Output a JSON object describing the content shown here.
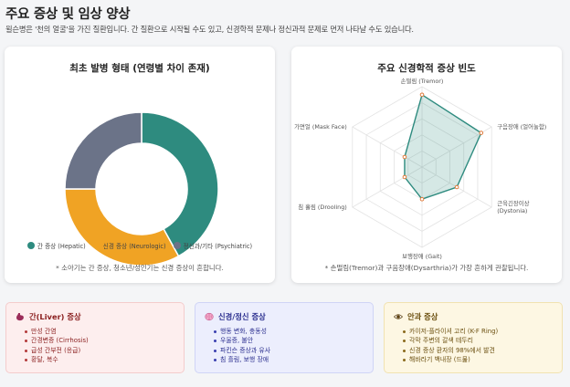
{
  "header": {
    "title": "주요 증상 및 임상 양상",
    "subtitle": "윌슨병은 '천의 얼굴'을 가진 질환입니다. 간 질환으로 시작될 수도 있고, 신경학적 문제나 정신과적 문제로 먼저 나타날 수도 있습니다."
  },
  "onset_card": {
    "title": "최초 발병 형태 (연령별 차이 존재)",
    "note": "* 소아기는 간 증상, 청소년/성인기는 신경 증상이 흔합니다."
  },
  "neuro_card": {
    "title": "주요 신경학적 증상 빈도",
    "note": "* 손떨림(Tremor)과 구음장애(Dysarthria)가 가장 흔하게 관찰됩니다."
  },
  "chart_data": [
    {
      "type": "pie",
      "title": "최초 발병 형태 (연령별 차이 존재)",
      "categories": [
        "간 증상 (Hepatic)",
        "신경 증상 (Neurologic)",
        "정신과/기타 (Psychiatric)"
      ],
      "values": [
        42,
        33,
        25
      ],
      "colors": [
        "#2e8b7f",
        "#f0a324",
        "#6b7388"
      ],
      "legend": "bottom"
    },
    {
      "type": "radar",
      "title": "주요 신경학적 증상 빈도",
      "categories": [
        "손떨림 (Tremor)",
        "구음장애 (얼어눌함)",
        "근육긴장이상 (Dystonia)",
        "보행장애 (Gait)",
        "침 흘림 (Drooling)",
        "가면얼 (Mask Face)"
      ],
      "values": [
        90,
        85,
        50,
        40,
        25,
        25
      ],
      "rmax": 100,
      "colors": [
        "#2e8b7f"
      ],
      "grid": true
    }
  ],
  "boxes": {
    "liver": {
      "title": "간(Liver) 증상",
      "icon": "stomach-icon",
      "items": [
        "만성 간염",
        "간경변증 (Cirrhosis)",
        "급성 간부전 (응급)",
        "황달, 복수"
      ]
    },
    "neuro": {
      "title": "신경/정신 증상",
      "icon": "brain-icon",
      "items": [
        "행동 변화, 충동성",
        "우울증, 불안",
        "파킨슨 증상과 유사",
        "침 흘림, 보행 장애"
      ]
    },
    "eye": {
      "title": "안과 증상",
      "icon": "eye-icon",
      "items": [
        "카이저-플라이셔 고리 (K-F Ring)",
        "각막 주변의 갈색 테두리",
        "신경 증상 환자의 98%에서 발견",
        "해바라기 백내장 (드묾)"
      ]
    }
  }
}
